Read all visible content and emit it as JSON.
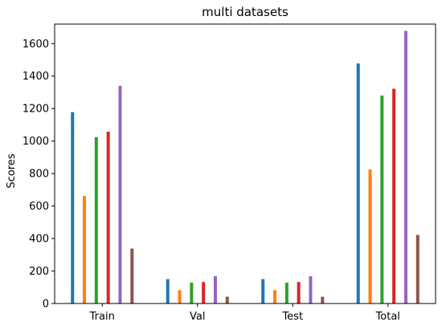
{
  "chart_data": {
    "type": "bar",
    "title": "multi datasets",
    "xlabel": "",
    "ylabel": "Scores",
    "categories": [
      "Train",
      "Val",
      "Test",
      "Total"
    ],
    "ylim": [
      0,
      1720
    ],
    "yticks": [
      0,
      200,
      400,
      600,
      800,
      1000,
      1200,
      1400,
      1600
    ],
    "grid": false,
    "legend": "none",
    "series": [
      {
        "values": [
          1178,
          150,
          150,
          1478
        ],
        "color": "#1f77b4"
      },
      {
        "values": [
          662,
          82,
          82,
          826
        ],
        "color": "#ff7f0e"
      },
      {
        "values": [
          1024,
          128,
          128,
          1280
        ],
        "color": "#2ca02c"
      },
      {
        "values": [
          1058,
          132,
          132,
          1322
        ],
        "color": "#d62728"
      },
      {
        "values": [
          1340,
          168,
          168,
          1678
        ],
        "color": "#9467bd"
      },
      {
        "values": [
          338,
          42,
          42,
          422
        ],
        "color": "#8c564b"
      }
    ]
  }
}
